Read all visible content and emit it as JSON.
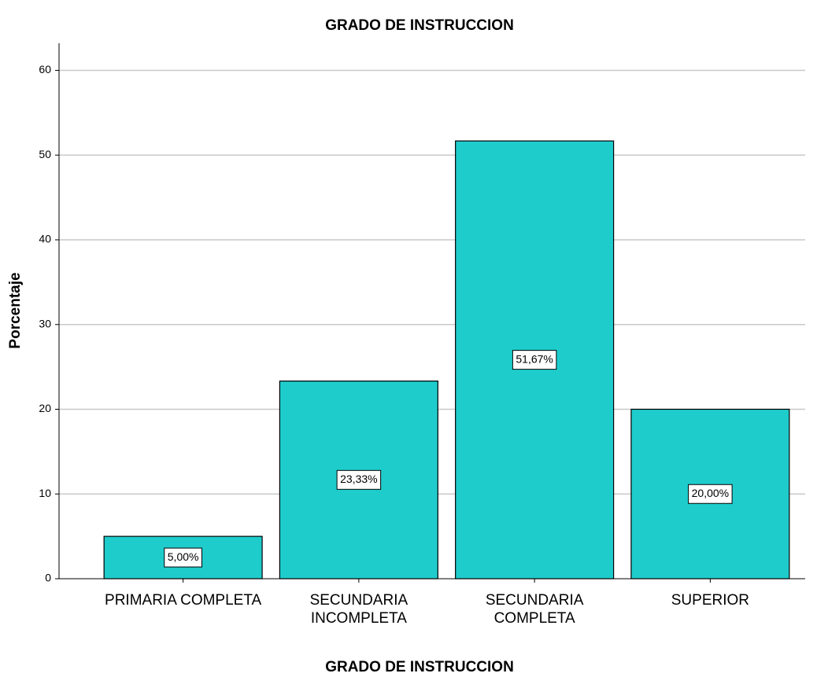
{
  "chart_data": {
    "type": "bar",
    "title": "GRADO DE INSTRUCCION",
    "x_label": "GRADO DE INSTRUCCION",
    "y_label": "Porcentaje",
    "categories": [
      "PRIMARIA COMPLETA",
      "SECUNDARIA INCOMPLETA",
      "SECUNDARIA COMPLETA",
      "SUPERIOR"
    ],
    "values": [
      5,
      23.33,
      51.67,
      20
    ],
    "value_labels": [
      "5,00%",
      "23,33%",
      "51,67%",
      "20,00%"
    ],
    "color": "#1fcccc",
    "ylim": [
      0,
      63.2
    ],
    "yticks": [
      0,
      10,
      20,
      30,
      40,
      50,
      60
    ],
    "grid": true
  }
}
